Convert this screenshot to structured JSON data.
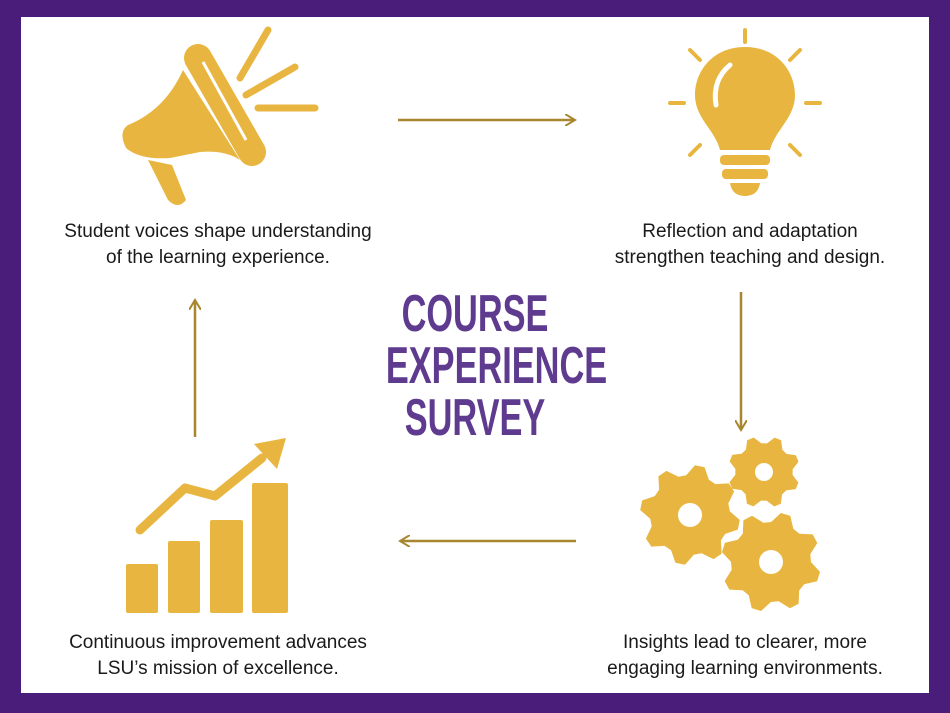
{
  "title": {
    "line1": "COURSE",
    "line2": "EXPERIENCE",
    "line3": "SURVEY"
  },
  "steps": [
    {
      "icon": "megaphone-icon",
      "line1": "Student voices shape understanding",
      "line2": "of the learning experience."
    },
    {
      "icon": "lightbulb-icon",
      "line1": "Reflection and adaptation",
      "line2": "strengthen teaching and design."
    },
    {
      "icon": "gears-icon",
      "line1": "Insights lead to clearer, more",
      "line2": "engaging learning environments."
    },
    {
      "icon": "growth-chart-icon",
      "line1": "Continuous improvement advances",
      "line2": "LSU’s mission of excellence."
    }
  ],
  "colors": {
    "border": "#4a1d7a",
    "title": "#5e3b8f",
    "icon": "#e8b640",
    "arrow": "#a8862f"
  }
}
